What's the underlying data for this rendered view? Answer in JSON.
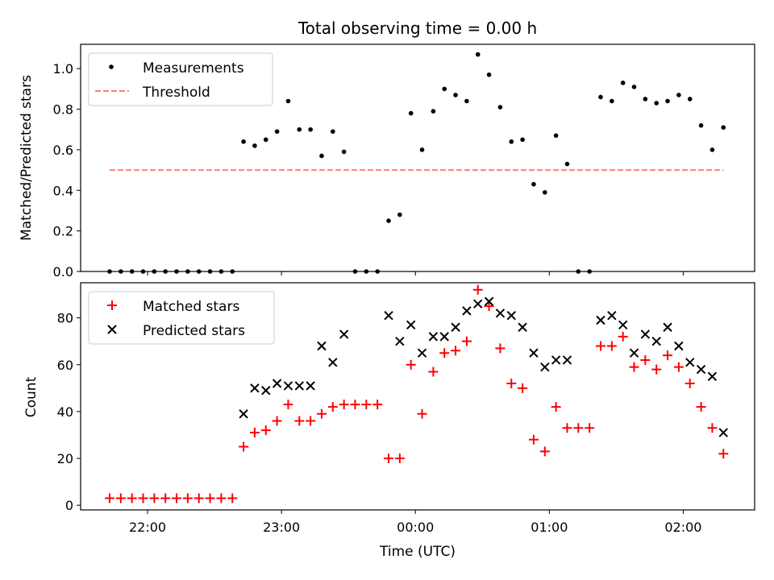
{
  "colors": {
    "measurements": "#000000",
    "threshold": "#ff7f7f",
    "matched": "#ff0000",
    "predicted": "#000000"
  },
  "chart_data": [
    {
      "type": "scatter",
      "title": "Total observing time = 0.00 h",
      "xlabel": "",
      "ylabel": "Matched/Predicted stars",
      "xlim": [
        "21:30",
        "02:32"
      ],
      "ylim": [
        0,
        1.12
      ],
      "yticks": [
        0.0,
        0.2,
        0.4,
        0.6,
        0.8,
        1.0
      ],
      "ytick_labels": [
        "0.0",
        "0.2",
        "0.4",
        "0.6",
        "0.8",
        "1.0"
      ],
      "legend_position": "top-left",
      "series": [
        {
          "name": "Measurements",
          "marker": "dot",
          "x": [
            "21:43",
            "21:48",
            "21:53",
            "21:58",
            "22:03",
            "22:08",
            "22:13",
            "22:18",
            "22:23",
            "22:28",
            "22:33",
            "22:38",
            "22:43",
            "22:48",
            "22:53",
            "22:58",
            "23:03",
            "23:08",
            "23:13",
            "23:18",
            "23:23",
            "23:28",
            "23:33",
            "23:38",
            "23:43",
            "23:48",
            "23:53",
            "23:58",
            "00:03",
            "00:08",
            "00:13",
            "00:18",
            "00:23",
            "00:28",
            "00:33",
            "00:38",
            "00:43",
            "00:48",
            "00:53",
            "00:58",
            "01:03",
            "01:08",
            "01:13",
            "01:18",
            "01:23",
            "01:28",
            "01:33",
            "01:38",
            "01:43",
            "01:48",
            "01:53",
            "01:58",
            "02:03",
            "02:08",
            "02:13",
            "02:18"
          ],
          "y": [
            0,
            0,
            0,
            0,
            0,
            0,
            0,
            0,
            0,
            0,
            0,
            0,
            0.64,
            0.62,
            0.65,
            0.69,
            0.84,
            0.7,
            0.7,
            0.57,
            0.69,
            0.59,
            0,
            0,
            0,
            0.25,
            0.28,
            0.78,
            0.6,
            0.79,
            0.9,
            0.87,
            0.84,
            1.07,
            0.97,
            0.81,
            0.64,
            0.65,
            0.43,
            0.39,
            0.67,
            0.53,
            0,
            0,
            0.86,
            0.84,
            0.93,
            0.91,
            0.85,
            0.83,
            0.84,
            0.87,
            0.85,
            0.72,
            0.6,
            0.71
          ]
        },
        {
          "name": "Threshold",
          "marker": "dashed-line",
          "x": [
            "21:43",
            "02:18"
          ],
          "y": [
            0.5,
            0.5
          ]
        }
      ]
    },
    {
      "type": "scatter",
      "title": "",
      "xlabel": "Time (UTC)",
      "ylabel": "Count",
      "xlim": [
        "21:30",
        "02:32"
      ],
      "ylim": [
        -2,
        95
      ],
      "xticks": [
        "22:00",
        "23:00",
        "00:00",
        "01:00",
        "02:00"
      ],
      "yticks": [
        0,
        20,
        40,
        60,
        80
      ],
      "ytick_labels": [
        "0",
        "20",
        "40",
        "60",
        "80"
      ],
      "legend_position": "top-left",
      "series": [
        {
          "name": "Matched stars",
          "marker": "plus",
          "x": [
            "21:43",
            "21:48",
            "21:53",
            "21:58",
            "22:03",
            "22:08",
            "22:13",
            "22:18",
            "22:23",
            "22:28",
            "22:33",
            "22:38",
            "22:43",
            "22:48",
            "22:53",
            "22:58",
            "23:03",
            "23:08",
            "23:13",
            "23:18",
            "23:23",
            "23:28",
            "23:33",
            "23:38",
            "23:43",
            "23:48",
            "23:53",
            "23:58",
            "00:03",
            "00:08",
            "00:13",
            "00:18",
            "00:23",
            "00:28",
            "00:33",
            "00:38",
            "00:43",
            "00:48",
            "00:53",
            "00:58",
            "01:03",
            "01:08",
            "01:13",
            "01:18",
            "01:23",
            "01:28",
            "01:33",
            "01:38",
            "01:43",
            "01:48",
            "01:53",
            "01:58",
            "02:03",
            "02:08",
            "02:13",
            "02:18"
          ],
          "y": [
            3,
            3,
            3,
            3,
            3,
            3,
            3,
            3,
            3,
            3,
            3,
            3,
            25,
            31,
            32,
            36,
            43,
            36,
            36,
            39,
            42,
            43,
            43,
            43,
            43,
            20,
            20,
            60,
            39,
            57,
            65,
            66,
            70,
            92,
            85,
            67,
            52,
            50,
            28,
            23,
            42,
            33,
            33,
            33,
            68,
            68,
            72,
            59,
            62,
            58,
            64,
            59,
            52,
            42,
            33,
            22
          ]
        },
        {
          "name": "Predicted stars",
          "marker": "x",
          "x": [
            "22:43",
            "22:48",
            "22:53",
            "22:58",
            "23:03",
            "23:08",
            "23:13",
            "23:18",
            "23:23",
            "23:28",
            "23:48",
            "23:53",
            "23:58",
            "00:03",
            "00:08",
            "00:13",
            "00:18",
            "00:23",
            "00:28",
            "00:33",
            "00:38",
            "00:43",
            "00:48",
            "00:53",
            "00:58",
            "01:03",
            "01:08",
            "01:23",
            "01:28",
            "01:33",
            "01:38",
            "01:43",
            "01:48",
            "01:53",
            "01:58",
            "02:03",
            "02:08",
            "02:13",
            "02:18"
          ],
          "y": [
            39,
            50,
            49,
            52,
            51,
            51,
            51,
            68,
            61,
            73,
            81,
            70,
            77,
            65,
            72,
            72,
            76,
            83,
            86,
            87,
            82,
            81,
            76,
            65,
            59,
            62,
            62,
            79,
            81,
            77,
            65,
            73,
            70,
            76,
            68,
            61,
            58,
            55,
            31
          ]
        }
      ]
    }
  ]
}
